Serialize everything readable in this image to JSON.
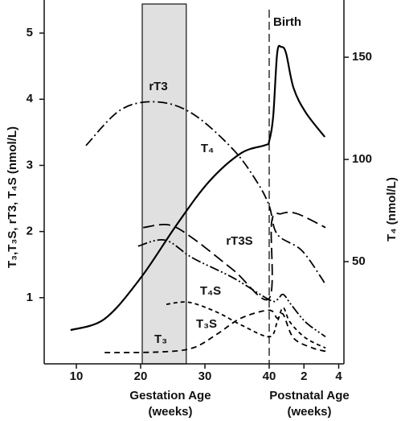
{
  "chart_data": {
    "type": "line",
    "y_label": "T₃,T₃S, rT3, T₄S (nmol/L)",
    "y2_label": "T₄ (nmol/L)",
    "x_label": [
      "Gestation Age",
      "(weeks)"
    ],
    "x2_label": [
      "Postnatal Age",
      "(weeks)"
    ],
    "xlim": [
      5,
      40
    ],
    "xticks": [
      10,
      20,
      30,
      40
    ],
    "x2lim": [
      0,
      4.3
    ],
    "x2ticks": [
      2,
      4
    ],
    "ylim": [
      0,
      5.5
    ],
    "yticks": [
      1,
      2,
      3,
      4,
      5
    ],
    "y2lim": [
      0,
      178
    ],
    "y2ticks": [
      50,
      100,
      150
    ],
    "shaded_range": [
      20.25,
      27.1
    ],
    "shaded_color": "#e0e0e0",
    "birth": {
      "label": "Birth",
      "x": 40
    },
    "series": [
      {
        "name": "T₄",
        "axis": "y2",
        "style": "solid",
        "color": "#000000",
        "x": [
          9.1,
          14.4,
          20,
          25.6,
          30.6,
          35.6,
          39.4,
          40
        ],
        "values": [
          16.5,
          22,
          42,
          68,
          89,
          103,
          107,
          109
        ],
        "x2": [
          0.23,
          0.46,
          0.7,
          0.97,
          1.4,
          2.1,
          3.2
        ],
        "values2": [
          121,
          152,
          155,
          152,
          135,
          123,
          111
        ]
      },
      {
        "name": "rT3",
        "style": "dash-dot",
        "color": "#000000",
        "x": [
          11.5,
          16.9,
          22.5,
          28.1,
          34.4,
          38.1,
          40
        ],
        "values": [
          3.3,
          3.84,
          3.96,
          3.78,
          3.24,
          2.75,
          2.39
        ],
        "x2": [
          0.46,
          1.85,
          3,
          3.24
        ],
        "values2": [
          1.96,
          1.72,
          1.3,
          1.18
        ]
      },
      {
        "name": "rT3S",
        "style": "long-dash",
        "color": "#000000",
        "x": [
          20.4,
          24.4,
          28.1,
          34.4,
          40
        ],
        "values": [
          2.06,
          2.1,
          1.9,
          1.42,
          0.99
        ],
        "x2": [
          0.14,
          0.7,
          1.6,
          3.24
        ],
        "values2": [
          2.14,
          2.27,
          2.27,
          2.06
        ]
      },
      {
        "name": "T₄S",
        "style": "dash-dot-dot",
        "color": "#000000",
        "x": [
          19.6,
          23.8,
          28.1,
          34.4,
          40
        ],
        "values": [
          1.78,
          1.87,
          1.6,
          1.3,
          0.97
        ],
        "x2": [
          0.46,
          0.8,
          1.25,
          2.1,
          3.24
        ],
        "values2": [
          0.97,
          1.05,
          0.9,
          0.63,
          0.41
        ]
      },
      {
        "name": "T₃S",
        "style": "short-dash",
        "color": "#000000",
        "x": [
          24,
          27.5,
          31.9,
          35.6,
          40
        ],
        "values": [
          0.9,
          0.93,
          0.78,
          0.59,
          0.41
        ],
        "x2": [
          0.46,
          0.8,
          1.2,
          2.1,
          3.24
        ],
        "values2": [
          0.63,
          0.85,
          0.63,
          0.39,
          0.24
        ]
      },
      {
        "name": "T₃",
        "style": "dash",
        "color": "#000000",
        "x": [
          14.4,
          23.1,
          28.1,
          31.9,
          35.6,
          40
        ],
        "values": [
          0.17,
          0.18,
          0.24,
          0.45,
          0.69,
          0.81
        ],
        "x2": [
          0.46,
          0.8,
          1.4,
          2.5,
          3.24
        ],
        "values2": [
          0.69,
          0.75,
          0.39,
          0.24,
          0.19
        ]
      }
    ]
  }
}
